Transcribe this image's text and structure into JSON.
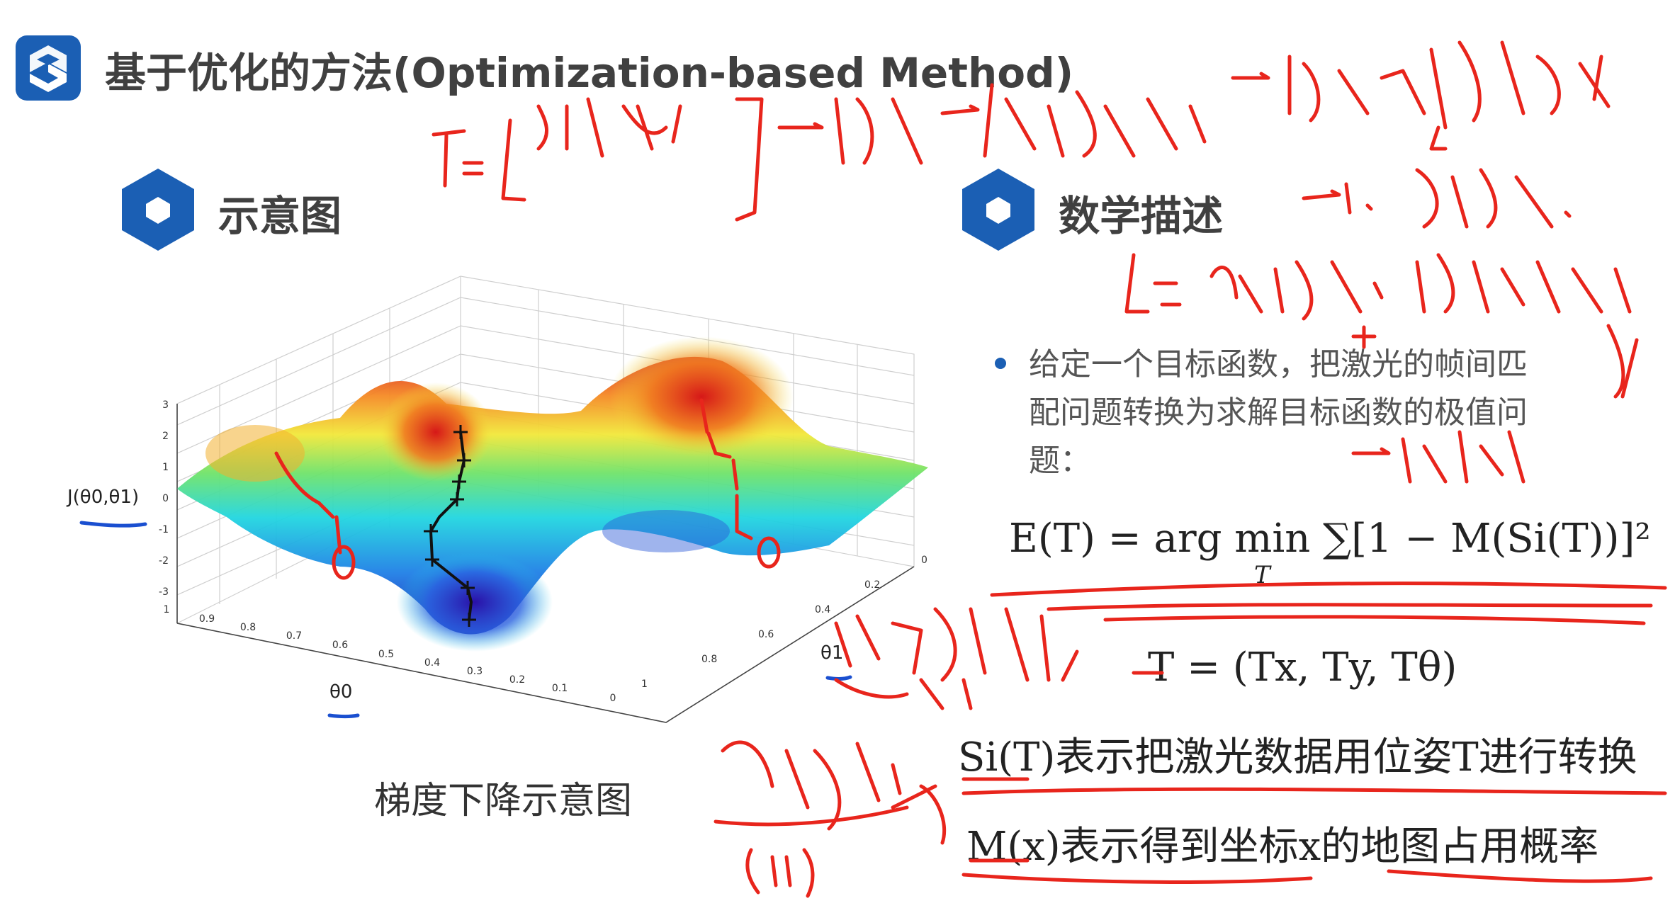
{
  "header": {
    "title": "基于优化的方法(Optimization-based Method)"
  },
  "left_section": {
    "title": "示意图",
    "caption": "梯度下降示意图",
    "plot": {
      "z_label": "J(θ0,θ1)",
      "x_label": "θ0",
      "y_label": "θ1",
      "z_ticks": [
        "3",
        "2",
        "1",
        "0",
        "-1",
        "-2",
        "-3"
      ],
      "x_ticks": [
        "1",
        "0.9",
        "0.8",
        "0.7",
        "0.6",
        "0.5",
        "0.4",
        "0.3",
        "0.2",
        "0.1",
        "0"
      ],
      "y_ticks": [
        "0",
        "0.2",
        "0.4",
        "0.6",
        "0.8",
        "1"
      ]
    }
  },
  "right_section": {
    "title": "数学描述",
    "bullet_lines": [
      "给定一个目标函数，把激光的帧间匹",
      "配问题转换为求解目标函数的极值问",
      "题："
    ],
    "formula_main": "E(T) = arg min ∑[1 − M(Si(T))]²",
    "formula_sub": "T",
    "formula_pose": "T = (Tx, Ty, Tθ)",
    "desc_si": "Si(T)表示把激光数据用位姿T进行转换",
    "desc_m": "M(x)表示得到坐标x的地图占用概率"
  },
  "colors": {
    "brand_blue": "#1b5fb4",
    "annotation_red": "#e8251c",
    "annotation_blue": "#1a4fd0"
  },
  "icons": [
    "logo-icon",
    "hexagon-icon"
  ]
}
